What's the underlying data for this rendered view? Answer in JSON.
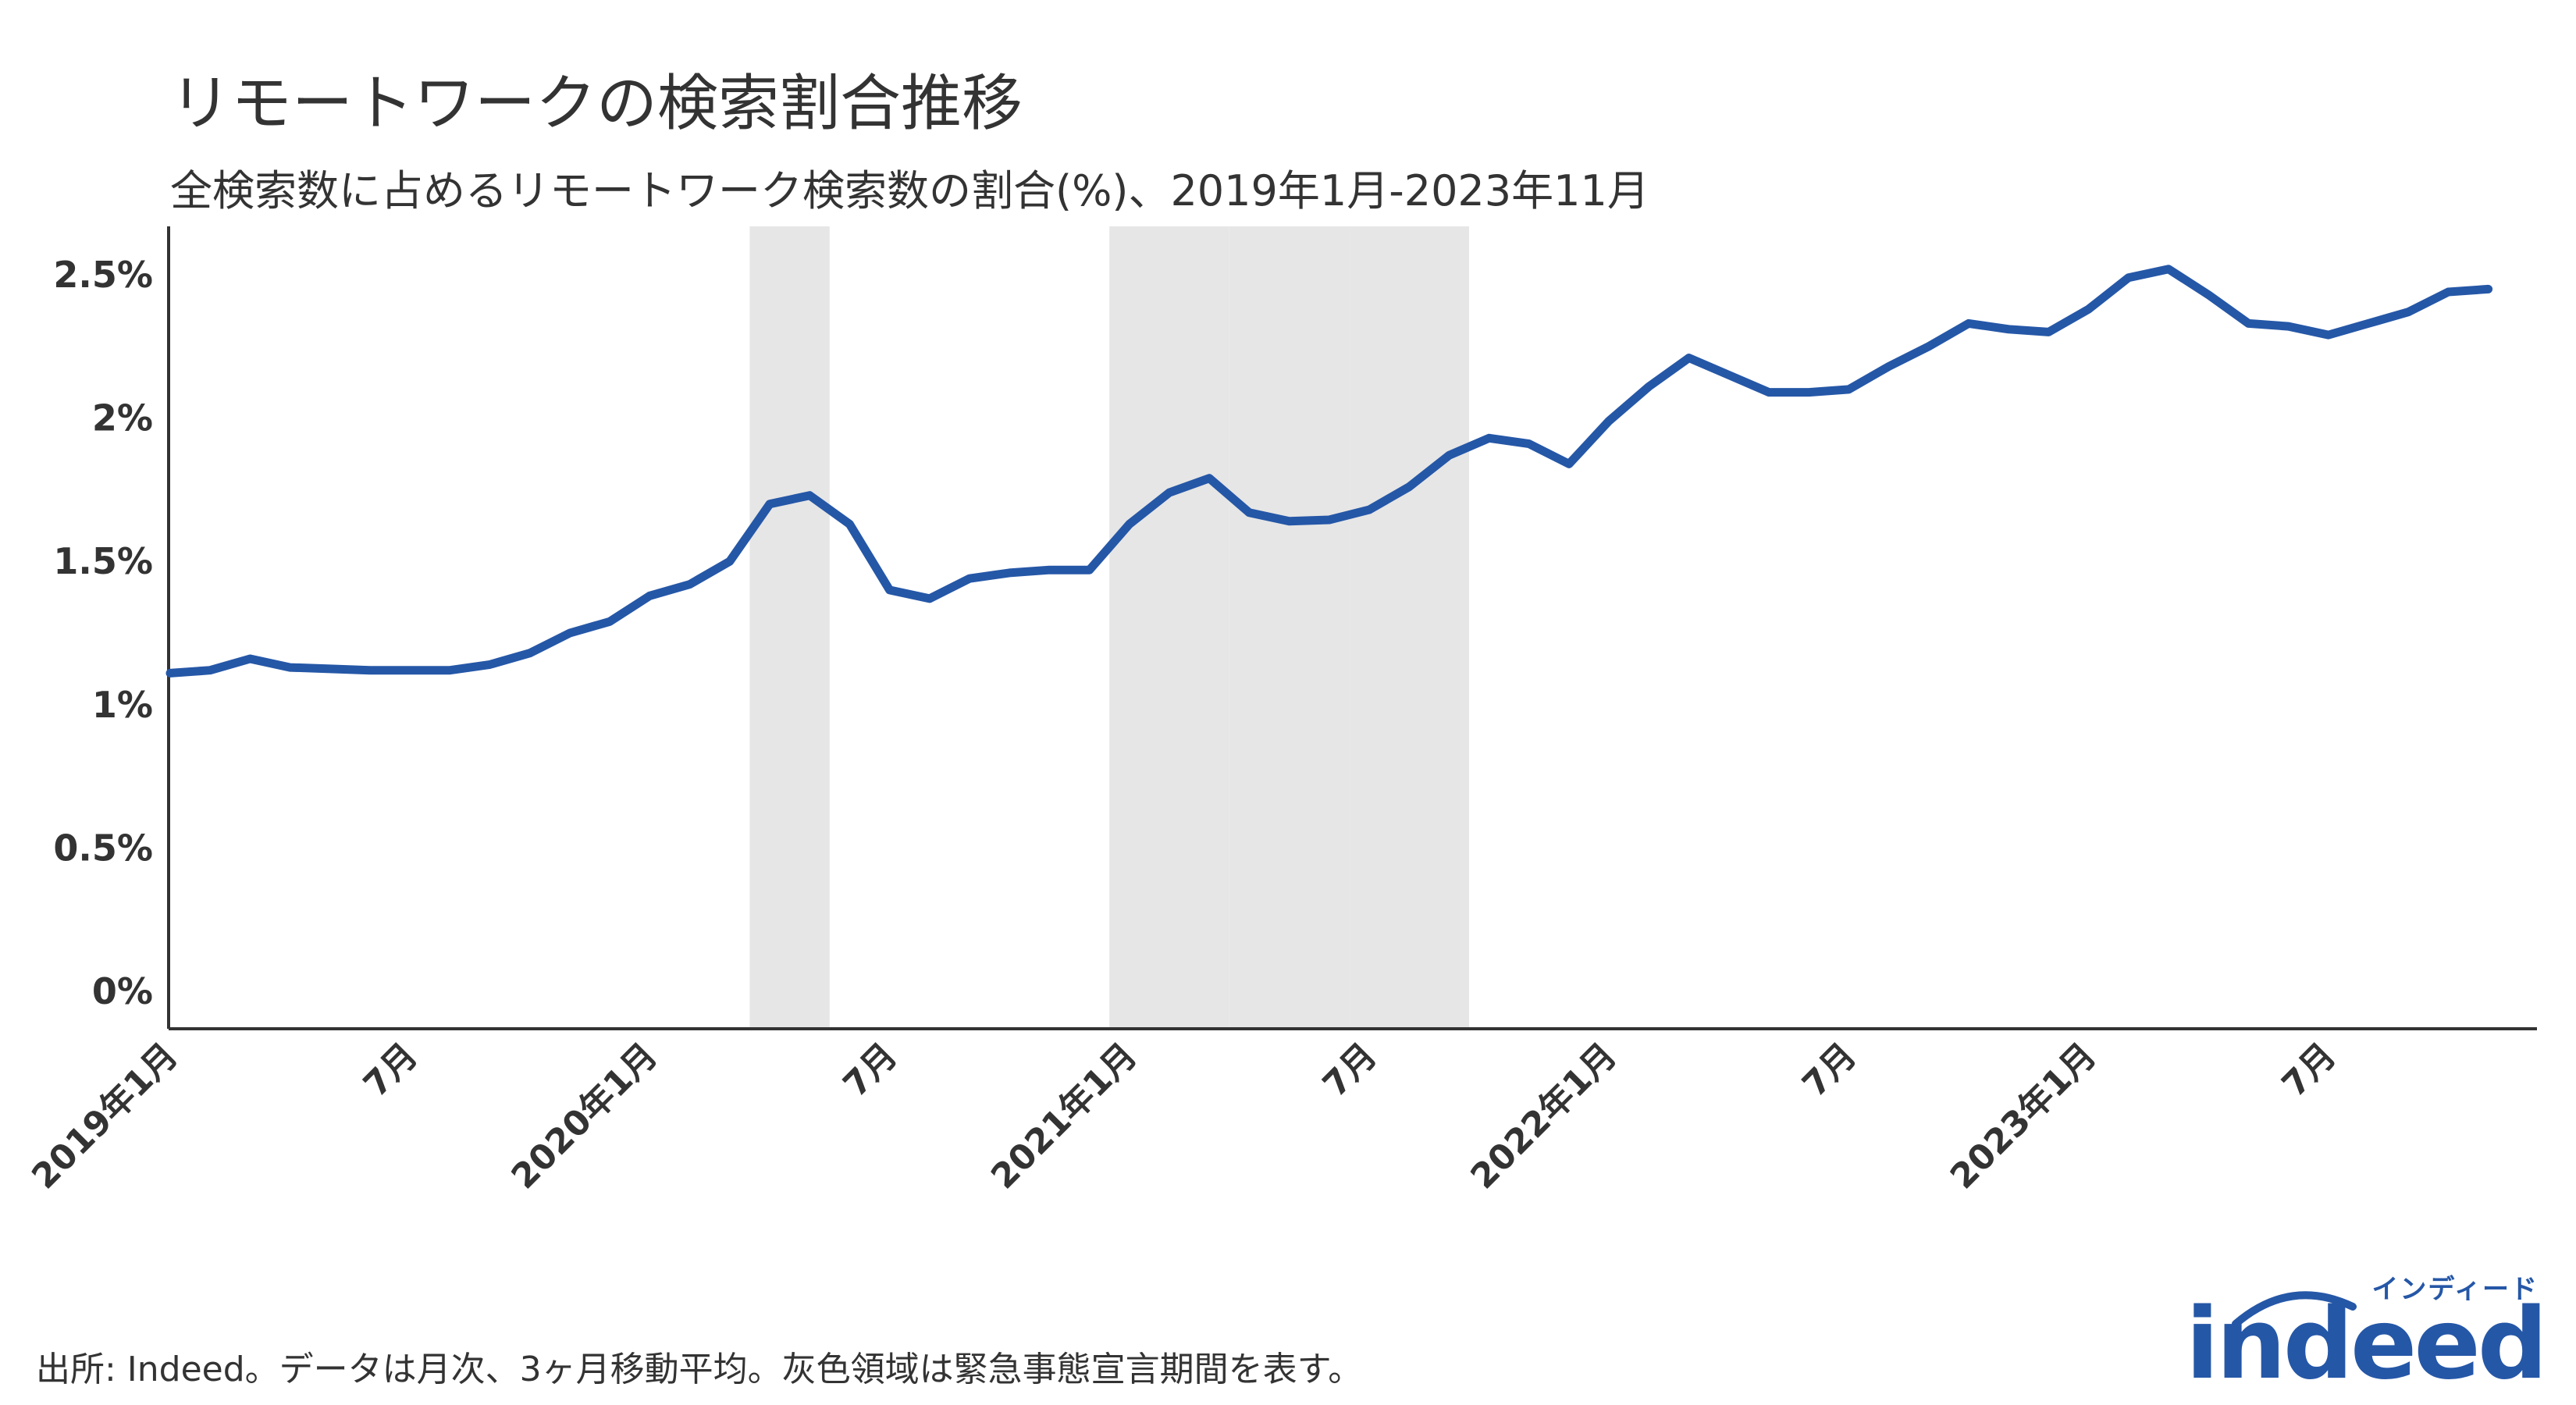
{
  "title": "リモートワークの検索割合推移",
  "subtitle": "全検索数に占めるリモートワーク検索数の割合(%)、2019年1月-2023年11月",
  "source": "出所: Indeed。データは月次、3ヶ月移動平均。灰色領域は緊急事態宣言期間を表す。",
  "logo": {
    "kana": "インディード",
    "word": "indeed"
  },
  "colors": {
    "line": "#2557a7",
    "shade": "#e6e6e6",
    "axis": "#333333"
  },
  "chart_data": {
    "type": "line",
    "ylim": [
      0,
      2.75
    ],
    "yticks": [
      {
        "value": 0,
        "label": "0%"
      },
      {
        "value": 0.5,
        "label": "0.5%"
      },
      {
        "value": 1,
        "label": "1%"
      },
      {
        "value": 1.5,
        "label": "1.5%"
      },
      {
        "value": 2,
        "label": "2%"
      },
      {
        "value": 2.5,
        "label": "2.5%"
      }
    ],
    "xticks": [
      {
        "label": "2019年1月",
        "date": "2019-01"
      },
      {
        "label": "7月",
        "date": "2019-07"
      },
      {
        "label": "2020年1月",
        "date": "2020-01"
      },
      {
        "label": "7月",
        "date": "2020-07"
      },
      {
        "label": "2021年1月",
        "date": "2021-01"
      },
      {
        "label": "7月",
        "date": "2021-07"
      },
      {
        "label": "2022年1月",
        "date": "2022-01"
      },
      {
        "label": "7月",
        "date": "2022-07"
      },
      {
        "label": "2023年1月",
        "date": "2023-01"
      },
      {
        "label": "7月",
        "date": "2023-07"
      }
    ],
    "shaded_periods": [
      {
        "start": "2020-04",
        "end": "2020-05"
      },
      {
        "start": "2021-01",
        "end": "2021-03"
      },
      {
        "start": "2021-04",
        "end": "2021-06"
      },
      {
        "start": "2021-07",
        "end": "2021-09"
      }
    ],
    "series": [
      {
        "x": [
          "2019-01",
          "2019-02",
          "2019-03",
          "2019-04",
          "2019-05",
          "2019-06",
          "2019-07",
          "2019-08",
          "2019-09",
          "2019-10",
          "2019-11",
          "2019-12",
          "2020-01",
          "2020-02",
          "2020-03",
          "2020-04",
          "2020-05",
          "2020-06",
          "2020-07",
          "2020-08",
          "2020-09",
          "2020-10",
          "2020-11",
          "2020-12",
          "2021-01",
          "2021-02",
          "2021-03",
          "2021-04",
          "2021-05",
          "2021-06",
          "2021-07",
          "2021-08",
          "2021-09",
          "2021-10",
          "2021-11",
          "2021-12",
          "2022-01",
          "2022-02",
          "2022-03",
          "2022-04",
          "2022-05",
          "2022-06",
          "2022-07",
          "2022-08",
          "2022-09",
          "2022-10",
          "2022-11",
          "2022-12",
          "2023-01",
          "2023-02",
          "2023-03",
          "2023-04",
          "2023-05",
          "2023-06",
          "2023-07",
          "2023-08",
          "2023-09",
          "2023-10",
          "2023-11"
        ],
        "values": [
          1.11,
          1.12,
          1.16,
          1.13,
          1.125,
          1.12,
          1.12,
          1.12,
          1.14,
          1.18,
          1.25,
          1.29,
          1.38,
          1.42,
          1.5,
          1.7,
          1.73,
          1.63,
          1.4,
          1.37,
          1.44,
          1.46,
          1.47,
          1.47,
          1.63,
          1.74,
          1.79,
          1.67,
          1.64,
          1.645,
          1.68,
          1.76,
          1.87,
          1.93,
          1.91,
          1.84,
          1.99,
          2.11,
          2.21,
          2.15,
          2.09,
          2.09,
          2.1,
          2.18,
          2.25,
          2.33,
          2.31,
          2.3,
          2.38,
          2.49,
          2.52,
          2.43,
          2.33,
          2.32,
          2.29,
          2.33,
          2.37,
          2.44,
          2.45
        ]
      }
    ]
  }
}
